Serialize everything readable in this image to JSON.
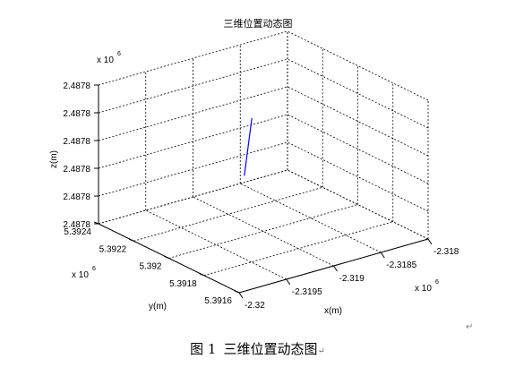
{
  "chart_data": {
    "type": "line3d",
    "title": "三维位置动态图",
    "xlabel": "x(m)",
    "ylabel": "y(m)",
    "zlabel": "z(m)",
    "x_ticks": [
      "-2.32",
      "-2.3195",
      "-2.319",
      "-2.3185",
      "-2.318"
    ],
    "y_ticks": [
      "5.3916",
      "5.3918",
      "5.392",
      "5.3922",
      "5.3924"
    ],
    "z_ticks": [
      "2.4878",
      "2.4878",
      "2.4878",
      "2.4878",
      "2.4878",
      "2.4878"
    ],
    "x_exponent": {
      "base": "x 10",
      "power": "6"
    },
    "y_exponent": {
      "base": "x 10",
      "power": "6"
    },
    "z_exponent": {
      "base": "x 10",
      "power": "6"
    },
    "grid": true,
    "series": [
      {
        "color": "#0000ff",
        "x": [
          -2.31914,
          -2.31922
        ],
        "y": [
          5.39199,
          5.39199
        ],
        "z": [
          2.48787,
          2.48779
        ]
      }
    ],
    "xlim": [
      -2.32,
      -2.318
    ],
    "ylim": [
      5.3916,
      5.3924
    ],
    "zlim": [
      2.4877,
      2.4879
    ]
  },
  "caption": {
    "number": "图 1",
    "text": "三维位置动态图"
  },
  "colors": {
    "line": "#0000ff",
    "axes": "#000000",
    "grid": "#000000"
  }
}
